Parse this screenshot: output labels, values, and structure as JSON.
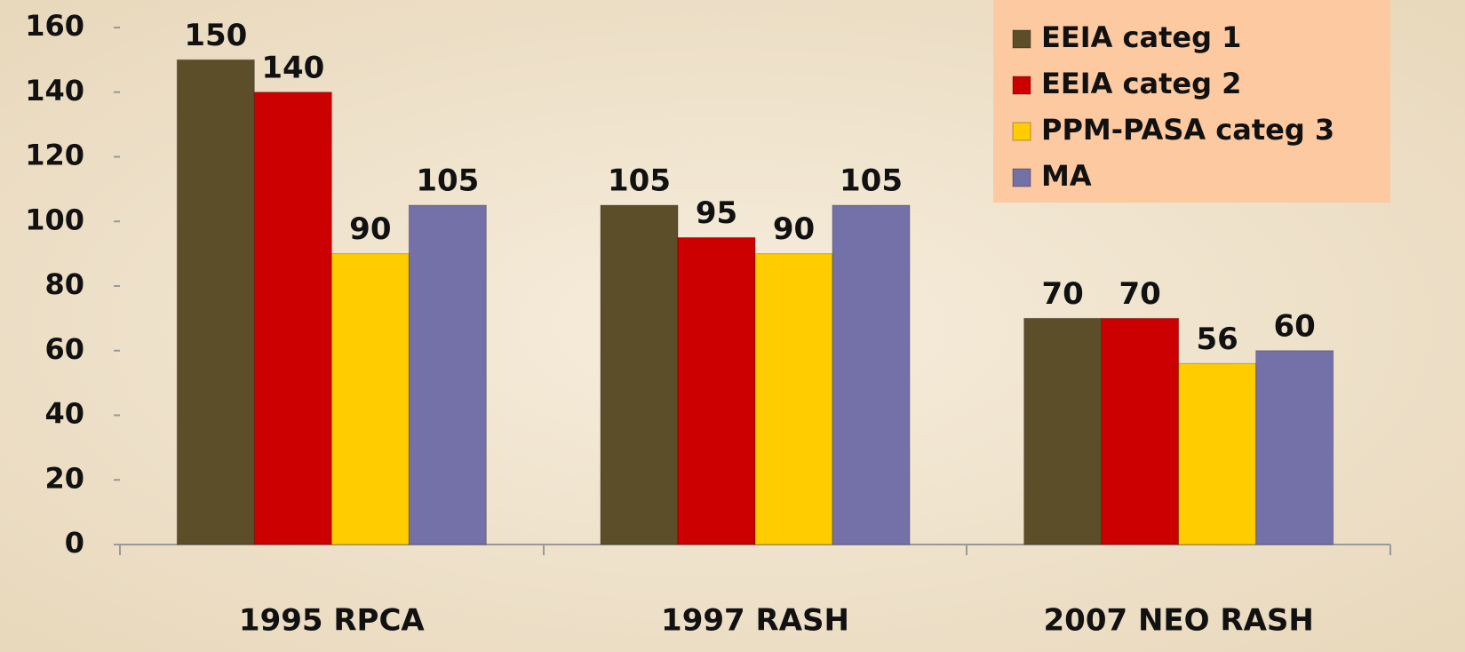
{
  "chart_data": {
    "type": "bar",
    "categories": [
      "1995 RPCA",
      "1997 RASH",
      "2007 NEO RASH"
    ],
    "series": [
      {
        "name": "EEIA categ 1",
        "color": "#5b4e29",
        "values": [
          150,
          105,
          70
        ]
      },
      {
        "name": "EEIA categ 2",
        "color": "#cc0000",
        "values": [
          140,
          95,
          70
        ]
      },
      {
        "name": "PPM-PASA categ 3",
        "color": "#ffcc00",
        "values": [
          90,
          90,
          56
        ]
      },
      {
        "name": "MA",
        "color": "#7470a8",
        "values": [
          105,
          105,
          60
        ]
      }
    ],
    "ylim": [
      0,
      160
    ],
    "yticks": [
      0,
      20,
      40,
      60,
      80,
      100,
      120,
      140,
      160
    ],
    "grid": false,
    "legend": "top-right",
    "legend_background": "#fcc9a0"
  }
}
